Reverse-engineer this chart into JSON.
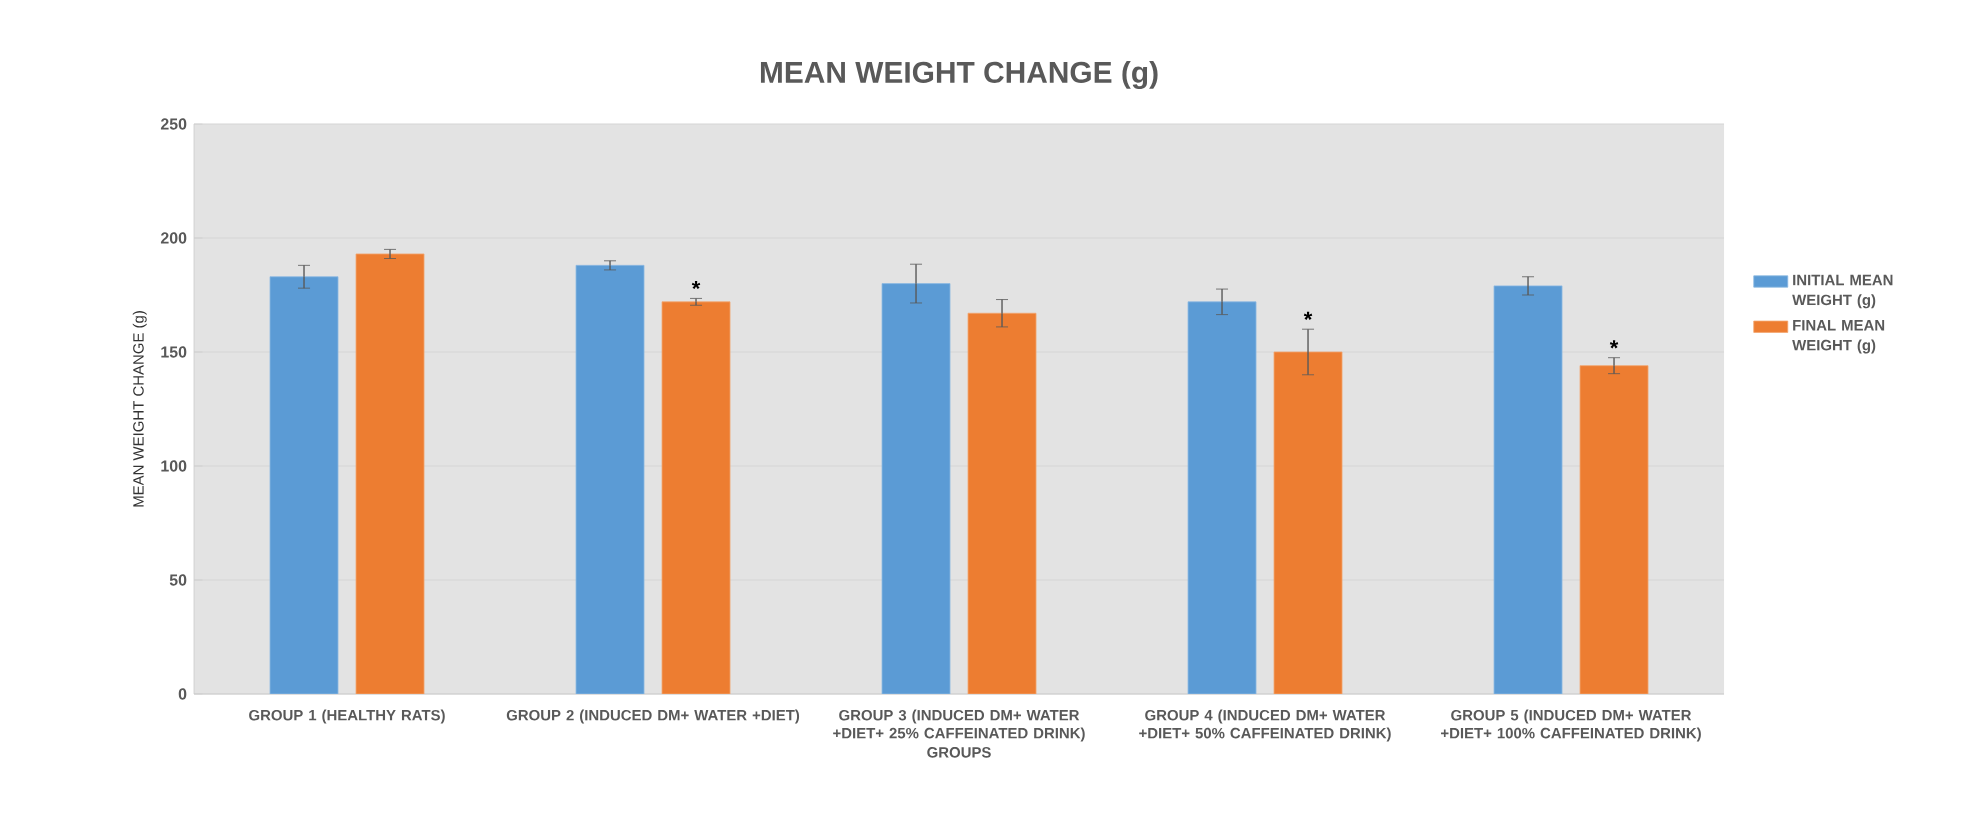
{
  "chart_data": {
    "type": "bar",
    "title": "MEAN WEIGHT CHANGE (g)",
    "xlabel": "GROUPS",
    "ylabel": "MEAN WEIGHT CHANGE (g)",
    "categories": [
      "GROUP 1 (HEALTHY RATS)",
      "GROUP 2 (INDUCED DM+ WATER +DIET)",
      "GROUP 3 (INDUCED DM+ WATER +DIET+ 25% CAFFEINATED DRINK)",
      "GROUP 4 (INDUCED DM+ WATER +DIET+ 50% CAFFEINATED DRINK)",
      "GROUP 5 (INDUCED DM+ WATER +DIET+ 100% CAFFEINATED DRINK)"
    ],
    "series": [
      {
        "name": "INITIAL MEAN WEIGHT (g)",
        "color": "#5b9bd5",
        "values": [
          183,
          188,
          180,
          172,
          179
        ],
        "errors": [
          5,
          2,
          8.5,
          5.6,
          4
        ]
      },
      {
        "name": "FINAL MEAN WEIGHT (g)",
        "color": "#ed7d31",
        "values": [
          193,
          172,
          167,
          150,
          144
        ],
        "errors": [
          2,
          1.5,
          6,
          10,
          3.5
        ]
      }
    ],
    "ylim": [
      0,
      250
    ],
    "yticks": [
      0,
      50,
      100,
      150,
      200,
      250
    ],
    "grid": "y",
    "legend": "right",
    "annotations": [
      {
        "text": "*",
        "x": "GROUP 2 (INDUCED DM+ WATER +DIET)",
        "y": 172
      },
      {
        "text": "*",
        "x": "GROUP 4 (INDUCED DM+ WATER +DIET+ 50% CAFFEINATED DRINK)",
        "y": 150
      },
      {
        "text": "*",
        "x": "GROUP 5 (INDUCED DM+ WATER +DIET+ 100% CAFFEINATED DRINK)",
        "y": 144
      }
    ]
  }
}
